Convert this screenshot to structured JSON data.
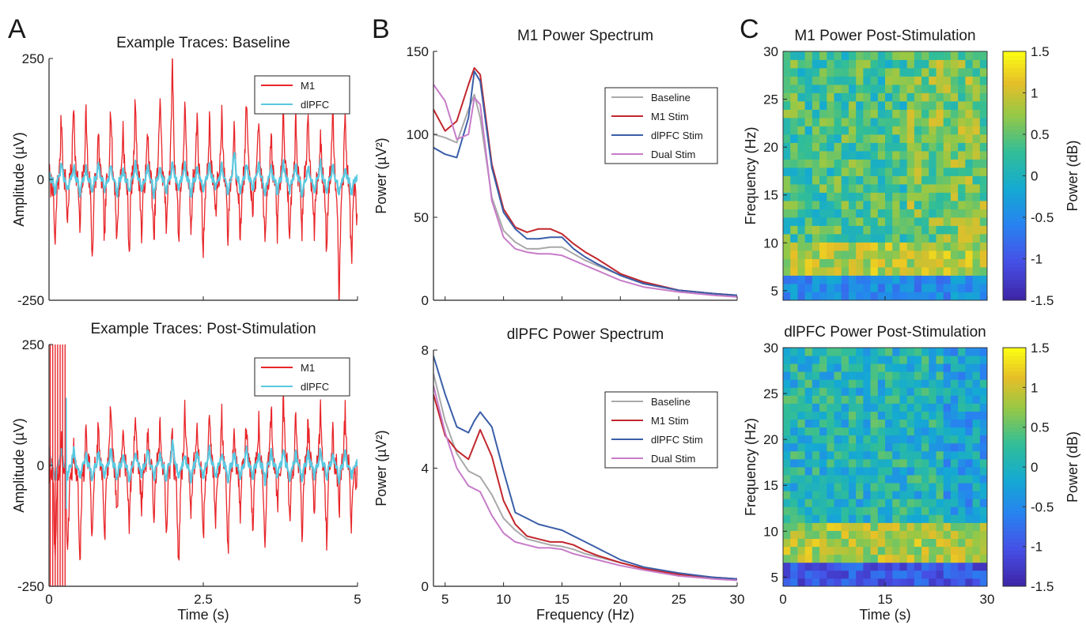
{
  "panel_letters": [
    "A",
    "B",
    "C"
  ],
  "colors": {
    "M1": "#e8262a",
    "dlPFC": "#5ac8e0",
    "Baseline": "#a9a9a9",
    "M1 Stim": "#c1272d",
    "dlPFC Stim": "#3a5ea8",
    "Dual Stim": "#c77cc9"
  },
  "chart_data": [
    {
      "type": "line",
      "title": "Example Traces: Baseline",
      "xlabel": "",
      "ylabel": "Amplitude (µV)",
      "xlim": [
        0,
        5
      ],
      "ylim": [
        -250,
        250
      ],
      "xticks": [
        0,
        2.5,
        5
      ],
      "xticklabels": [
        "",
        "",
        ""
      ],
      "yticks": [
        -250,
        0,
        250
      ],
      "yticklabels": [
        "-250",
        "0",
        "250"
      ],
      "legend": "top-right",
      "series": [
        {
          "name": "M1",
          "color": "#e8262a",
          "x": [
            0,
            0.1,
            0.2,
            0.3,
            0.4,
            0.5,
            0.6,
            0.7,
            0.8,
            0.9,
            1.0,
            1.1,
            1.2,
            1.3,
            1.4,
            1.5,
            1.6,
            1.7,
            1.8,
            1.9,
            2.0,
            2.1,
            2.2,
            2.3,
            2.4,
            2.5,
            2.6,
            2.7,
            2.8,
            2.9,
            3.0,
            3.1,
            3.2,
            3.3,
            3.4,
            3.5,
            3.6,
            3.7,
            3.8,
            3.9,
            4.0,
            4.1,
            4.2,
            4.3,
            4.4,
            4.5,
            4.6,
            4.7,
            4.8,
            4.9,
            5.0
          ],
          "y": [
            20,
            -140,
            130,
            -90,
            160,
            -110,
            140,
            -160,
            90,
            -120,
            150,
            -130,
            110,
            -150,
            170,
            -120,
            100,
            -140,
            180,
            -110,
            240,
            -130,
            150,
            -100,
            130,
            -150,
            120,
            -80,
            140,
            -120,
            110,
            -130,
            160,
            -90,
            120,
            -140,
            100,
            -110,
            150,
            -130,
            120,
            -100,
            140,
            -110,
            90,
            -150,
            170,
            -245,
            140,
            -160,
            -80
          ]
        },
        {
          "name": "dlPFC",
          "color": "#5ac8e0",
          "x": [
            0,
            0.1,
            0.2,
            0.3,
            0.4,
            0.5,
            0.6,
            0.7,
            0.8,
            0.9,
            1.0,
            1.1,
            1.2,
            1.3,
            1.4,
            1.5,
            1.6,
            1.7,
            1.8,
            1.9,
            2.0,
            2.1,
            2.2,
            2.3,
            2.4,
            2.5,
            2.6,
            2.7,
            2.8,
            2.9,
            3.0,
            3.1,
            3.2,
            3.3,
            3.4,
            3.5,
            3.6,
            3.7,
            3.8,
            3.9,
            4.0,
            4.1,
            4.2,
            4.3,
            4.4,
            4.5,
            4.6,
            4.7,
            4.8,
            4.9,
            5.0
          ],
          "y": [
            15,
            -30,
            35,
            -25,
            30,
            -35,
            25,
            -30,
            35,
            -25,
            30,
            -35,
            25,
            -30,
            35,
            -25,
            30,
            -35,
            25,
            -30,
            35,
            -25,
            30,
            -35,
            25,
            -30,
            35,
            -20,
            30,
            -35,
            60,
            -30,
            35,
            -25,
            30,
            -35,
            25,
            -30,
            35,
            -25,
            30,
            -35,
            25,
            -30,
            35,
            -25,
            30,
            -35,
            25,
            -30,
            10
          ]
        }
      ]
    },
    {
      "type": "line",
      "title": "Example Traces: Post-Stimulation",
      "xlabel": "Time (s)",
      "ylabel": "Amplitude (µV)",
      "xlim": [
        0,
        5
      ],
      "ylim": [
        -250,
        250
      ],
      "xticks": [
        0,
        2.5,
        5
      ],
      "xticklabels": [
        "0",
        "2.5",
        "5"
      ],
      "yticks": [
        -250,
        0,
        250
      ],
      "yticklabels": [
        "-250",
        "0",
        "250"
      ],
      "legend": "top-right",
      "series": [
        {
          "name": "M1",
          "color": "#e8262a",
          "x": [
            0,
            0.1,
            0.2,
            0.3,
            0.4,
            0.5,
            0.6,
            0.7,
            0.8,
            0.9,
            1.0,
            1.1,
            1.2,
            1.3,
            1.4,
            1.5,
            1.6,
            1.7,
            1.8,
            1.9,
            2.0,
            2.1,
            2.2,
            2.3,
            2.4,
            2.5,
            2.6,
            2.7,
            2.8,
            2.9,
            3.0,
            3.1,
            3.2,
            3.3,
            3.4,
            3.5,
            3.6,
            3.7,
            3.8,
            3.9,
            4.0,
            4.1,
            4.2,
            4.3,
            4.4,
            4.5,
            4.6,
            4.7,
            4.8,
            4.9,
            5.0
          ],
          "y": [
            20,
            -210,
            60,
            -190,
            40,
            -220,
            80,
            -150,
            90,
            -170,
            120,
            -100,
            80,
            -130,
            100,
            -90,
            70,
            -120,
            90,
            -140,
            70,
            -210,
            120,
            -100,
            90,
            -160,
            110,
            -120,
            100,
            -180,
            70,
            -110,
            100,
            -130,
            90,
            -150,
            120,
            -90,
            130,
            -120,
            100,
            -140,
            90,
            -110,
            120,
            -150,
            70,
            -100,
            110,
            -130,
            -20
          ]
        },
        {
          "name": "dlPFC",
          "color": "#5ac8e0",
          "x": [
            0,
            0.1,
            0.2,
            0.3,
            0.4,
            0.5,
            0.6,
            0.7,
            0.8,
            0.9,
            1.0,
            1.1,
            1.2,
            1.3,
            1.4,
            1.5,
            1.6,
            1.7,
            1.8,
            1.9,
            2.0,
            2.1,
            2.2,
            2.3,
            2.4,
            2.5,
            2.6,
            2.7,
            2.8,
            2.9,
            3.0,
            3.1,
            3.2,
            3.3,
            3.4,
            3.5,
            3.6,
            3.7,
            3.8,
            3.9,
            4.0,
            4.1,
            4.2,
            4.3,
            4.4,
            4.5,
            4.6,
            4.7,
            4.8,
            4.9,
            5.0
          ],
          "y": [
            40,
            -35,
            30,
            -25,
            35,
            -30,
            25,
            -35,
            30,
            -25,
            35,
            -30,
            25,
            -35,
            30,
            -25,
            35,
            -30,
            25,
            -35,
            55,
            -30,
            25,
            -35,
            30,
            -25,
            35,
            -30,
            25,
            -35,
            30,
            -25,
            35,
            -30,
            25,
            -35,
            30,
            -25,
            35,
            -30,
            25,
            -35,
            30,
            -25,
            35,
            -30,
            25,
            -35,
            30,
            -25,
            10
          ]
        }
      ]
    },
    {
      "type": "line",
      "title": "M1 Power Spectrum",
      "xlabel": "",
      "ylabel": "Power (µV²)",
      "xlim": [
        4,
        30
      ],
      "ylim": [
        0,
        150
      ],
      "xticks": [
        5,
        10,
        15,
        20,
        25,
        30
      ],
      "xticklabels": [
        "",
        "",
        "",
        "",
        "",
        ""
      ],
      "yticks": [
        0,
        50,
        100,
        150
      ],
      "yticklabels": [
        "0",
        "50",
        "100",
        "150"
      ],
      "legend": "right",
      "x": [
        4,
        5,
        6,
        7,
        7.5,
        8,
        9,
        10,
        11,
        12,
        13,
        14,
        15,
        16,
        17,
        18,
        20,
        22,
        25,
        28,
        30
      ],
      "series": [
        {
          "name": "Baseline",
          "color": "#a9a9a9",
          "values": [
            100,
            98,
            95,
            115,
            124,
            110,
            62,
            42,
            35,
            31,
            31,
            32,
            32,
            28,
            24,
            21,
            15,
            10,
            6,
            4,
            3
          ]
        },
        {
          "name": "M1 Stim",
          "color": "#c1272d",
          "values": [
            115,
            102,
            108,
            130,
            140,
            136,
            82,
            55,
            44,
            41,
            43,
            43,
            40,
            34,
            29,
            25,
            16,
            11,
            6,
            4,
            3
          ]
        },
        {
          "name": "dlPFC Stim",
          "color": "#3a5ea8",
          "values": [
            92,
            88,
            86,
            110,
            138,
            132,
            80,
            53,
            43,
            37,
            37,
            38,
            38,
            31,
            26,
            22,
            15,
            10,
            6,
            4,
            3
          ]
        },
        {
          "name": "Dual Stim",
          "color": "#c77cc9",
          "values": [
            130,
            120,
            97,
            100,
            122,
            118,
            60,
            38,
            31,
            29,
            28,
            28,
            27,
            24,
            21,
            18,
            12,
            8,
            5,
            3,
            2
          ]
        }
      ]
    },
    {
      "type": "line",
      "title": "dlPFC Power Spectrum",
      "xlabel": "Frequency (Hz)",
      "ylabel": "Power (µV²)",
      "xlim": [
        4,
        30
      ],
      "ylim": [
        0,
        8
      ],
      "xticks": [
        5,
        10,
        15,
        20,
        25,
        30
      ],
      "xticklabels": [
        "5",
        "10",
        "15",
        "20",
        "25",
        "30"
      ],
      "yticks": [
        0,
        4,
        8
      ],
      "yticklabels": [
        "0",
        "4",
        "8"
      ],
      "legend": "right",
      "x": [
        4,
        5,
        6,
        7,
        7.5,
        8,
        9,
        10,
        11,
        12,
        13,
        14,
        15,
        16,
        17,
        18,
        20,
        22,
        25,
        28,
        30
      ],
      "series": [
        {
          "name": "Baseline",
          "color": "#a9a9a9",
          "values": [
            7.2,
            5.6,
            4.5,
            3.9,
            3.8,
            3.7,
            3.1,
            2.3,
            1.9,
            1.6,
            1.5,
            1.4,
            1.35,
            1.25,
            1.1,
            1.0,
            0.8,
            0.6,
            0.4,
            0.3,
            0.25
          ]
        },
        {
          "name": "M1 Stim",
          "color": "#c1272d",
          "values": [
            6.5,
            5.1,
            4.6,
            4.3,
            4.8,
            5.3,
            4.4,
            2.9,
            2.1,
            1.7,
            1.6,
            1.5,
            1.5,
            1.4,
            1.2,
            1.05,
            0.8,
            0.6,
            0.4,
            0.3,
            0.25
          ]
        },
        {
          "name": "dlPFC Stim",
          "color": "#3a5ea8",
          "values": [
            7.8,
            6.5,
            5.4,
            5.2,
            5.6,
            5.9,
            5.4,
            3.9,
            2.5,
            2.3,
            2.1,
            2.0,
            1.9,
            1.7,
            1.5,
            1.3,
            0.9,
            0.65,
            0.45,
            0.3,
            0.25
          ]
        },
        {
          "name": "Dual Stim",
          "color": "#c77cc9",
          "values": [
            6.8,
            5.2,
            4.0,
            3.4,
            3.3,
            3.2,
            2.4,
            1.8,
            1.5,
            1.4,
            1.3,
            1.3,
            1.25,
            1.1,
            1.0,
            0.9,
            0.7,
            0.55,
            0.35,
            0.25,
            0.2
          ]
        }
      ]
    },
    {
      "type": "heatmap",
      "title": "M1 Power Post-Stimulation",
      "xlabel": "",
      "ylabel": "Frequency (Hz)",
      "xlim": [
        0,
        30
      ],
      "ylim": [
        4,
        30
      ],
      "xticks": [
        0,
        15,
        30
      ],
      "xticklabels": [
        "",
        "",
        ""
      ],
      "yticks": [
        5,
        10,
        15,
        20,
        25,
        30
      ],
      "yticklabels": [
        "5",
        "10",
        "15",
        "20",
        "25",
        "30"
      ],
      "colorbar": {
        "label": "Power (dB)",
        "range": [
          -1.5,
          1.5
        ],
        "ticks": [
          1.5,
          1,
          0.5,
          0,
          -0.5,
          -1,
          -1.5
        ],
        "ticklabels": [
          "1.5",
          "1",
          "0.5",
          "0",
          "-0.5",
          "-1",
          "-1.5"
        ]
      },
      "grid_size": [
        28,
        30
      ],
      "pattern": "band near 8–9 Hz elevated (~1 dB), depressed below 7 Hz (~-0.5 dB), mixed 0–1 dB above 10 Hz"
    },
    {
      "type": "heatmap",
      "title": "dlPFC Power Post-Stimulation",
      "xlabel": "Time (s)",
      "ylabel": "Frequency (Hz)",
      "xlim": [
        0,
        30
      ],
      "ylim": [
        4,
        30
      ],
      "xticks": [
        0,
        15,
        30
      ],
      "xticklabels": [
        "0",
        "15",
        "30"
      ],
      "yticks": [
        5,
        10,
        15,
        20,
        25,
        30
      ],
      "yticklabels": [
        "5",
        "10",
        "15",
        "20",
        "25",
        "30"
      ],
      "colorbar": {
        "label": "Power (dB)",
        "range": [
          -1.5,
          1.5
        ],
        "ticks": [
          1.5,
          1,
          0.5,
          0,
          -0.5,
          -1,
          -1.5
        ],
        "ticklabels": [
          "1.5",
          "1",
          "0.5",
          "0",
          "-0.5",
          "-1",
          "-1.5"
        ]
      },
      "grid_size": [
        28,
        30
      ],
      "pattern": "band near 9–10 Hz elevated (~1 dB), strongly depressed below 6 Hz (~-1 dB), near 0 dB elsewhere"
    }
  ]
}
